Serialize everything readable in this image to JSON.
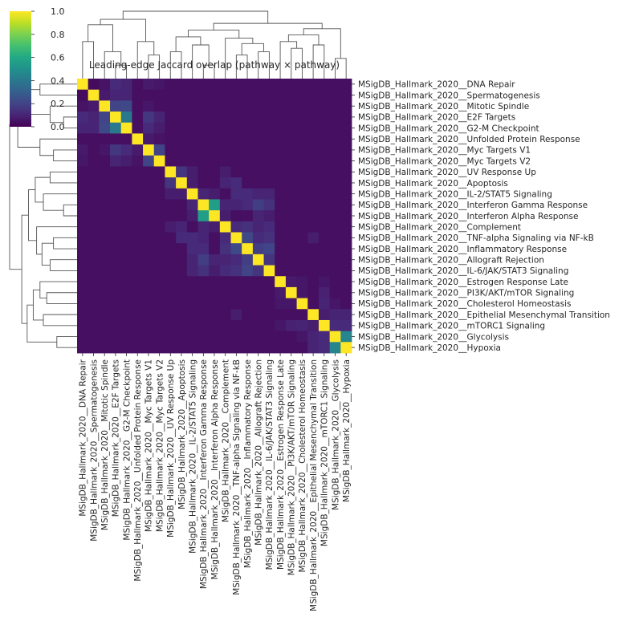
{
  "chart_data": {
    "type": "heatmap",
    "title": "Leading-edge Jaccard overlap (pathway × pathway)",
    "labels": [
      "MSigDB_Hallmark_2020__DNA Repair",
      "MSigDB_Hallmark_2020__Spermatogenesis",
      "MSigDB_Hallmark_2020__Mitotic Spindle",
      "MSigDB_Hallmark_2020__E2F Targets",
      "MSigDB_Hallmark_2020__G2-M Checkpoint",
      "MSigDB_Hallmark_2020__Unfolded Protein Response",
      "MSigDB_Hallmark_2020__Myc Targets V1",
      "MSigDB_Hallmark_2020__Myc Targets V2",
      "MSigDB_Hallmark_2020__UV Response Up",
      "MSigDB_Hallmark_2020__Apoptosis",
      "MSigDB_Hallmark_2020__IL-2/STAT5 Signaling",
      "MSigDB_Hallmark_2020__Interferon Gamma Response",
      "MSigDB_Hallmark_2020__Interferon Alpha Response",
      "MSigDB_Hallmark_2020__Complement",
      "MSigDB_Hallmark_2020__TNF-alpha Signaling via NF-kB",
      "MSigDB_Hallmark_2020__Inflammatory Response",
      "MSigDB_Hallmark_2020__Allograft Rejection",
      "MSigDB_Hallmark_2020__IL-6/JAK/STAT3 Signaling",
      "MSigDB_Hallmark_2020__Estrogen Response Late",
      "MSigDB_Hallmark_2020__PI3K/AKT/mTOR  Signaling",
      "MSigDB_Hallmark_2020__Cholesterol Homeostasis",
      "MSigDB_Hallmark_2020__Epithelial Mesenchymal Transition",
      "MSigDB_Hallmark_2020__mTORC1 Signaling",
      "MSigDB_Hallmark_2020__Glycolysis",
      "MSigDB_Hallmark_2020__Hypoxia"
    ],
    "offdiag_default": 0.04,
    "pairs": [
      {
        "i": 0,
        "j": 1,
        "v": 0.03
      },
      {
        "i": 0,
        "j": 2,
        "v": 0.05
      },
      {
        "i": 0,
        "j": 3,
        "v": 0.12
      },
      {
        "i": 0,
        "j": 4,
        "v": 0.1
      },
      {
        "i": 0,
        "j": 6,
        "v": 0.07
      },
      {
        "i": 0,
        "j": 7,
        "v": 0.06
      },
      {
        "i": 1,
        "j": 2,
        "v": 0.07
      },
      {
        "i": 1,
        "j": 3,
        "v": 0.1
      },
      {
        "i": 1,
        "j": 4,
        "v": 0.1
      },
      {
        "i": 2,
        "j": 3,
        "v": 0.2
      },
      {
        "i": 2,
        "j": 4,
        "v": 0.22
      },
      {
        "i": 2,
        "j": 6,
        "v": 0.06
      },
      {
        "i": 3,
        "j": 4,
        "v": 0.4
      },
      {
        "i": 3,
        "j": 6,
        "v": 0.16
      },
      {
        "i": 3,
        "j": 7,
        "v": 0.1
      },
      {
        "i": 4,
        "j": 6,
        "v": 0.12
      },
      {
        "i": 4,
        "j": 7,
        "v": 0.08
      },
      {
        "i": 5,
        "j": 6,
        "v": 0.07
      },
      {
        "i": 5,
        "j": 7,
        "v": 0.05
      },
      {
        "i": 6,
        "j": 7,
        "v": 0.2
      },
      {
        "i": 8,
        "j": 9,
        "v": 0.15
      },
      {
        "i": 8,
        "j": 10,
        "v": 0.08
      },
      {
        "i": 8,
        "j": 13,
        "v": 0.08
      },
      {
        "i": 9,
        "j": 10,
        "v": 0.08
      },
      {
        "i": 9,
        "j": 13,
        "v": 0.1
      },
      {
        "i": 9,
        "j": 14,
        "v": 0.12
      },
      {
        "i": 10,
        "j": 11,
        "v": 0.1
      },
      {
        "i": 10,
        "j": 12,
        "v": 0.08
      },
      {
        "i": 10,
        "j": 14,
        "v": 0.12
      },
      {
        "i": 10,
        "j": 15,
        "v": 0.12
      },
      {
        "i": 10,
        "j": 16,
        "v": 0.1
      },
      {
        "i": 10,
        "j": 17,
        "v": 0.1
      },
      {
        "i": 11,
        "j": 12,
        "v": 0.55
      },
      {
        "i": 11,
        "j": 13,
        "v": 0.1
      },
      {
        "i": 11,
        "j": 14,
        "v": 0.1
      },
      {
        "i": 11,
        "j": 15,
        "v": 0.12
      },
      {
        "i": 11,
        "j": 16,
        "v": 0.18
      },
      {
        "i": 11,
        "j": 17,
        "v": 0.14
      },
      {
        "i": 12,
        "j": 13,
        "v": 0.08
      },
      {
        "i": 12,
        "j": 16,
        "v": 0.1
      },
      {
        "i": 12,
        "j": 17,
        "v": 0.08
      },
      {
        "i": 13,
        "j": 14,
        "v": 0.12
      },
      {
        "i": 13,
        "j": 15,
        "v": 0.14
      },
      {
        "i": 13,
        "j": 16,
        "v": 0.1
      },
      {
        "i": 13,
        "j": 17,
        "v": 0.12
      },
      {
        "i": 14,
        "j": 15,
        "v": 0.22
      },
      {
        "i": 14,
        "j": 16,
        "v": 0.12
      },
      {
        "i": 14,
        "j": 17,
        "v": 0.14
      },
      {
        "i": 14,
        "j": 21,
        "v": 0.08
      },
      {
        "i": 15,
        "j": 16,
        "v": 0.18
      },
      {
        "i": 15,
        "j": 17,
        "v": 0.2
      },
      {
        "i": 16,
        "j": 17,
        "v": 0.15
      },
      {
        "i": 18,
        "j": 19,
        "v": 0.07
      },
      {
        "i": 18,
        "j": 20,
        "v": 0.06
      },
      {
        "i": 18,
        "j": 22,
        "v": 0.06
      },
      {
        "i": 19,
        "j": 20,
        "v": 0.06
      },
      {
        "i": 19,
        "j": 22,
        "v": 0.09
      },
      {
        "i": 20,
        "j": 22,
        "v": 0.1
      },
      {
        "i": 20,
        "j": 23,
        "v": 0.06
      },
      {
        "i": 21,
        "j": 22,
        "v": 0.08
      },
      {
        "i": 21,
        "j": 23,
        "v": 0.1
      },
      {
        "i": 21,
        "j": 24,
        "v": 0.1
      },
      {
        "i": 22,
        "j": 23,
        "v": 0.12
      },
      {
        "i": 22,
        "j": 24,
        "v": 0.12
      },
      {
        "i": 23,
        "j": 24,
        "v": 0.45
      }
    ],
    "colorbar": {
      "colormap": "viridis",
      "range": [
        0,
        1
      ],
      "ticks": [
        "0.0",
        "0.2",
        "0.4",
        "0.6",
        "0.8",
        "1.0"
      ]
    },
    "dendrograms": "row dendrogram on left, column dendrogram on top",
    "legend": "colorbar top-left"
  }
}
